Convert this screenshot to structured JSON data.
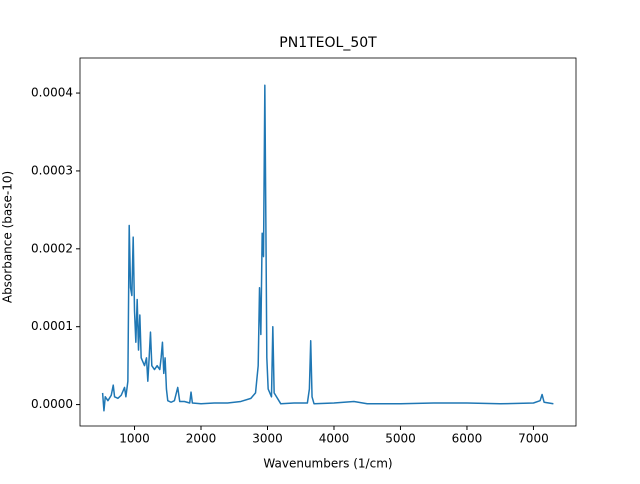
{
  "chart_data": {
    "type": "line",
    "title": "PN1TEOL_50T",
    "x_label": "Wavenumbers (1/cm)",
    "y_label": "Absorbance (base-10)",
    "xlim": [
      180,
      7640
    ],
    "ylim": [
      -2.75e-05,
      0.000445
    ],
    "xticks": [
      1000,
      2000,
      3000,
      4000,
      5000,
      6000,
      7000
    ],
    "yticks": [
      {
        "value": 0,
        "label": "0.0000"
      },
      {
        "value": 0.0001,
        "label": "0.0001"
      },
      {
        "value": 0.0002,
        "label": "0.0002"
      },
      {
        "value": 0.0003,
        "label": "0.0003"
      },
      {
        "value": 0.0004,
        "label": "0.0004"
      }
    ],
    "series": [
      {
        "color": "#1f77b4",
        "x": [
          520,
          540,
          560,
          600,
          650,
          680,
          700,
          750,
          800,
          850,
          870,
          900,
          920,
          940,
          960,
          980,
          1000,
          1020,
          1040,
          1060,
          1080,
          1100,
          1150,
          1180,
          1200,
          1220,
          1240,
          1260,
          1300,
          1340,
          1380,
          1400,
          1420,
          1440,
          1460,
          1480,
          1500,
          1550,
          1600,
          1650,
          1680,
          1750,
          1830,
          1850,
          1870,
          2000,
          2200,
          2400,
          2600,
          2750,
          2820,
          2860,
          2880,
          2900,
          2920,
          2940,
          2960,
          2975,
          2990,
          3010,
          3060,
          3080,
          3100,
          3200,
          3400,
          3600,
          3630,
          3650,
          3670,
          3700,
          4000,
          4300,
          4500,
          5000,
          5500,
          6000,
          6500,
          7000,
          7100,
          7130,
          7160,
          7300
        ],
        "values": [
          1.5e-05,
          -8e-06,
          1e-05,
          5e-06,
          1.2e-05,
          2.5e-05,
          1e-05,
          8e-06,
          1.2e-05,
          2.2e-05,
          1e-05,
          3e-05,
          0.00023,
          0.00015,
          0.00014,
          0.000215,
          0.00012,
          8e-05,
          0.000135,
          7e-05,
          0.000115,
          6e-05,
          5e-05,
          6e-05,
          3e-05,
          6e-05,
          9.3e-05,
          5e-05,
          4.5e-05,
          5e-05,
          4.5e-05,
          6e-05,
          8e-05,
          4e-05,
          6e-05,
          2e-05,
          5e-06,
          3e-06,
          5e-06,
          2.2e-05,
          4e-06,
          4e-06,
          2e-06,
          1.6e-05,
          2e-06,
          1e-06,
          2e-06,
          2e-06,
          4e-06,
          8e-06,
          1.5e-05,
          5e-05,
          0.00015,
          9e-05,
          0.00022,
          0.00019,
          0.00041,
          0.00024,
          6e-05,
          2e-05,
          1e-05,
          0.0001,
          1.5e-05,
          1e-06,
          2e-06,
          2e-06,
          2e-05,
          8.2e-05,
          1e-05,
          1e-06,
          2e-06,
          4e-06,
          1e-06,
          1e-06,
          2e-06,
          2e-06,
          1e-06,
          2e-06,
          5e-06,
          1.3e-05,
          3e-06,
          1e-06
        ]
      }
    ]
  }
}
